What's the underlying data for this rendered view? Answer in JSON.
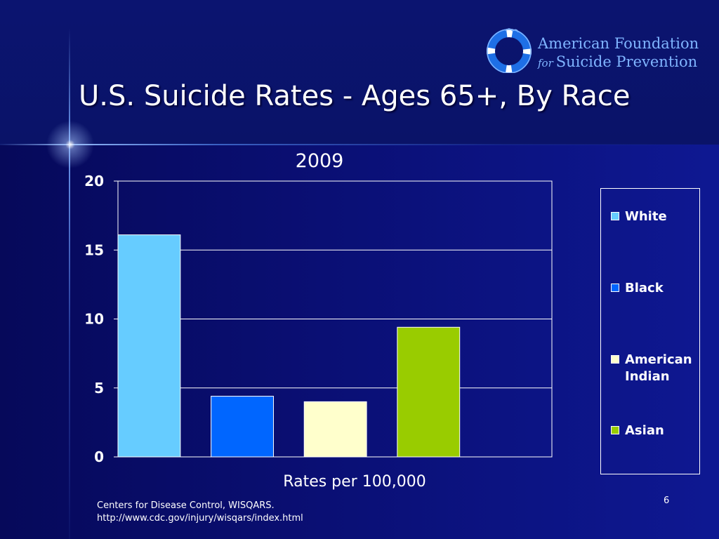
{
  "slide": {
    "title": "U.S. Suicide Rates - Ages 65+, By Race",
    "page_number": "6",
    "source_lines": [
      "Centers for Disease Control, WISQARS.",
      "http://www.cdc.gov/injury/wisqars/index.html"
    ]
  },
  "logo": {
    "line1": "American Foundation",
    "for_word": "for",
    "line2": "Suicide Prevention"
  },
  "chart_data": {
    "type": "bar",
    "title": "2009",
    "xlabel": "Rates per 100,000",
    "ylabel": "",
    "ylim": [
      0,
      20
    ],
    "yticks": [
      "0",
      "5",
      "10",
      "15",
      "20"
    ],
    "grid": true,
    "legend_position": "right",
    "series": [
      {
        "name": "White",
        "value": 16.1,
        "color": "#66ccff"
      },
      {
        "name": "Black",
        "value": 4.4,
        "color": "#0066ff"
      },
      {
        "name": "American Indian",
        "value": 4.0,
        "color": "#ffffcc"
      },
      {
        "name": "Asian",
        "value": 9.4,
        "color": "#99cc00"
      }
    ]
  }
}
